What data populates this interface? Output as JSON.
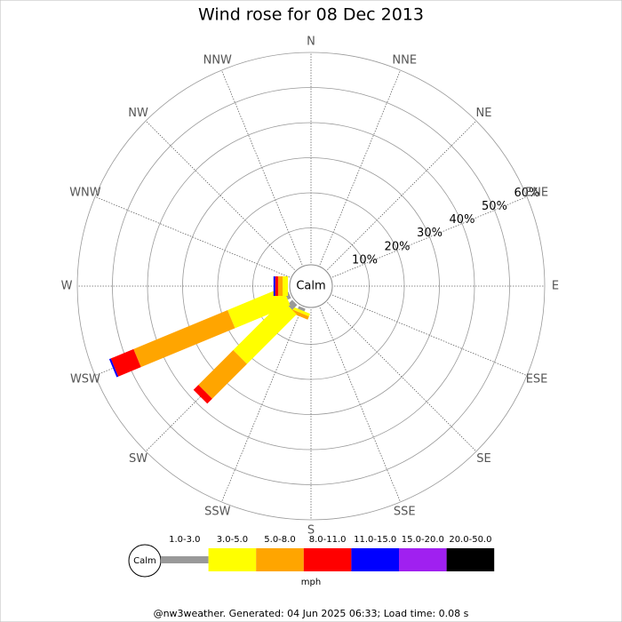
{
  "chart_data": {
    "type": "windrose",
    "title": "Wind rose for 08 Dec 2013",
    "center_label": "Calm",
    "directions": [
      "N",
      "NNE",
      "NE",
      "ENE",
      "E",
      "ESE",
      "SE",
      "SSE",
      "S",
      "SSW",
      "SW",
      "WSW",
      "W",
      "WNW",
      "NW",
      "NNW"
    ],
    "rlim": [
      0,
      60
    ],
    "rticks": [
      {
        "value": 10,
        "label": "10%"
      },
      {
        "value": 20,
        "label": "20%"
      },
      {
        "value": 30,
        "label": "30%"
      },
      {
        "value": 40,
        "label": "40%"
      },
      {
        "value": 50,
        "label": "50%"
      },
      {
        "value": 60,
        "label": "60%"
      }
    ],
    "series": [
      {
        "name": "1.0-3.0",
        "color": "#999999",
        "values": [
          0,
          0,
          0,
          0,
          0,
          0,
          0,
          0,
          0,
          0.8,
          2,
          1,
          0,
          0,
          0,
          0
        ]
      },
      {
        "name": "3.0-5.0",
        "color": "#ffff00",
        "values": [
          0,
          0,
          0,
          0,
          0,
          0,
          0,
          0,
          0,
          0.8,
          20,
          17,
          1.5,
          0,
          0,
          0
        ]
      },
      {
        "name": "5.0-8.0",
        "color": "#ffa500",
        "values": [
          0,
          0,
          0,
          0,
          0,
          0,
          0,
          0,
          0,
          1,
          14,
          29,
          1.3,
          0,
          0,
          0
        ]
      },
      {
        "name": "8.0-11.0",
        "color": "#ff0000",
        "values": [
          0,
          0,
          0,
          0,
          0,
          0,
          0,
          0,
          0,
          0,
          2,
          7,
          0.8,
          0,
          0,
          0
        ]
      },
      {
        "name": "11.0-15.0",
        "color": "#0000ff",
        "values": [
          0,
          0,
          0,
          0,
          0,
          0,
          0,
          0,
          0,
          0,
          0,
          0.5,
          0.5,
          0,
          0,
          0
        ]
      },
      {
        "name": "15.0-20.0",
        "color": "#a020f0",
        "values": [
          0,
          0,
          0,
          0,
          0,
          0,
          0,
          0,
          0,
          0,
          0,
          0,
          0,
          0,
          0,
          0
        ]
      },
      {
        "name": "20.0-50.0",
        "color": "#000000",
        "values": [
          0,
          0,
          0,
          0,
          0,
          0,
          0,
          0,
          0,
          0,
          0,
          0,
          0,
          0,
          0,
          0
        ]
      }
    ],
    "units": "mph",
    "footer": "@nw3weather. Generated: 04 Jun 2025 06:33; Load time: 0.08 s"
  }
}
